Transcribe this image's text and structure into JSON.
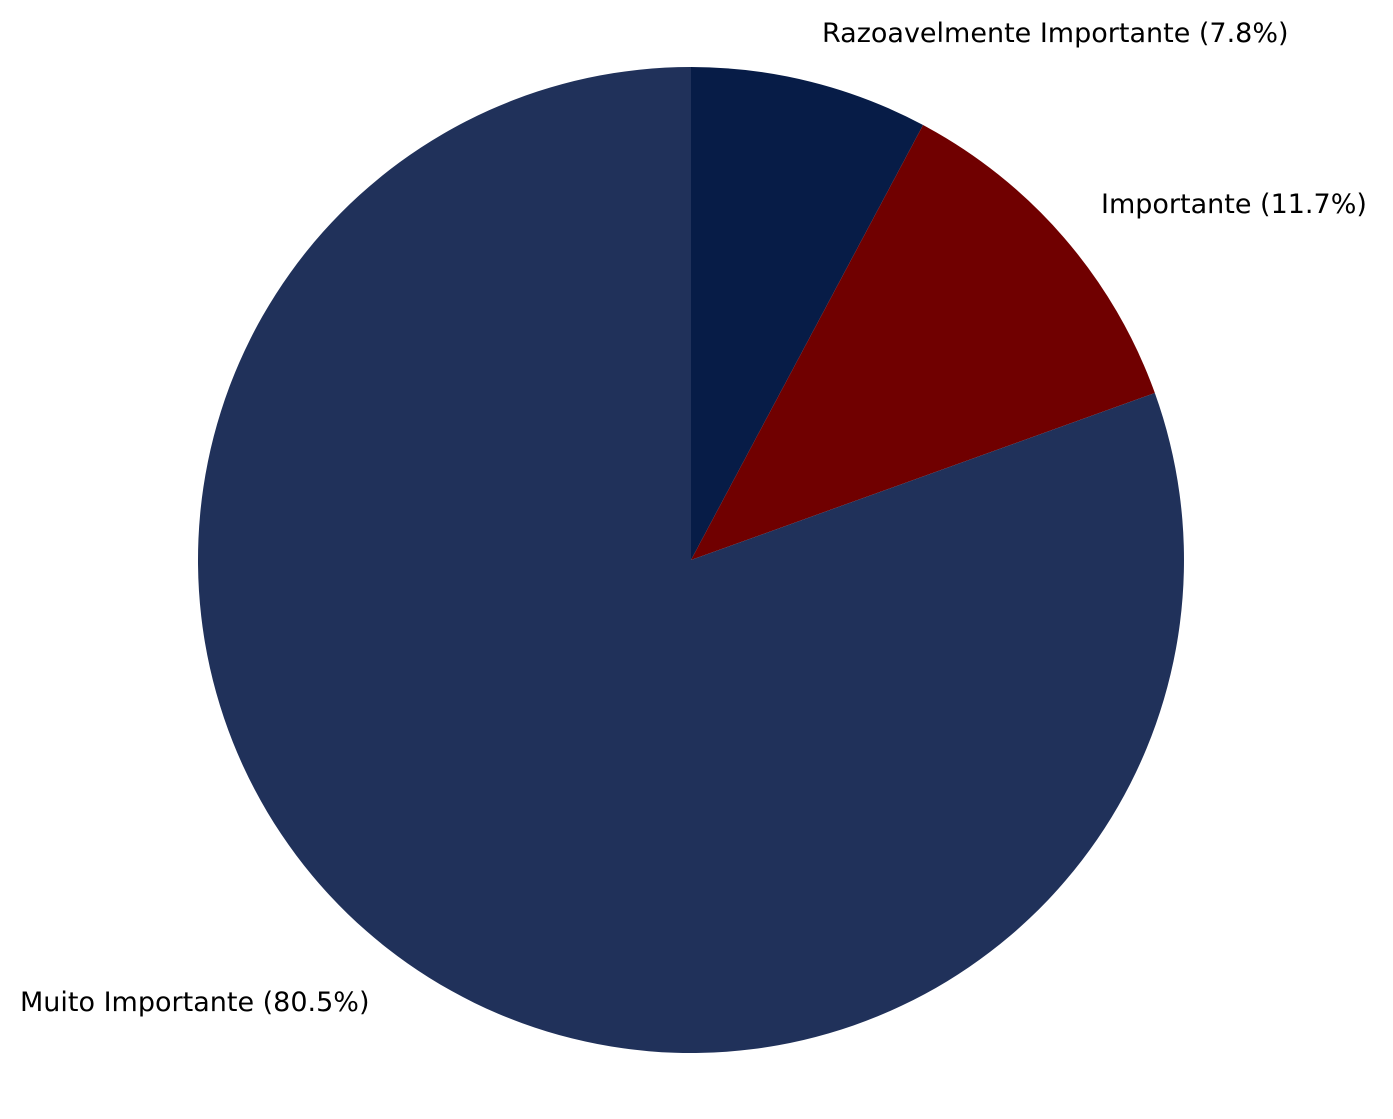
{
  "chart_data": {
    "type": "pie",
    "start_angle_deg": 90,
    "direction": "clockwise",
    "slices": [
      {
        "label": "Razoavelmente Importante",
        "value": 7.8,
        "display": "Razoavelmente Importante (7.8%)",
        "color": "#071c47"
      },
      {
        "label": "Importante",
        "value": 11.7,
        "display": "Importante (11.7%)",
        "color": "#700000"
      },
      {
        "label": "Muito Importante",
        "value": 80.5,
        "display": "Muito Importante (80.5%)",
        "color": "#20315a"
      }
    ]
  }
}
